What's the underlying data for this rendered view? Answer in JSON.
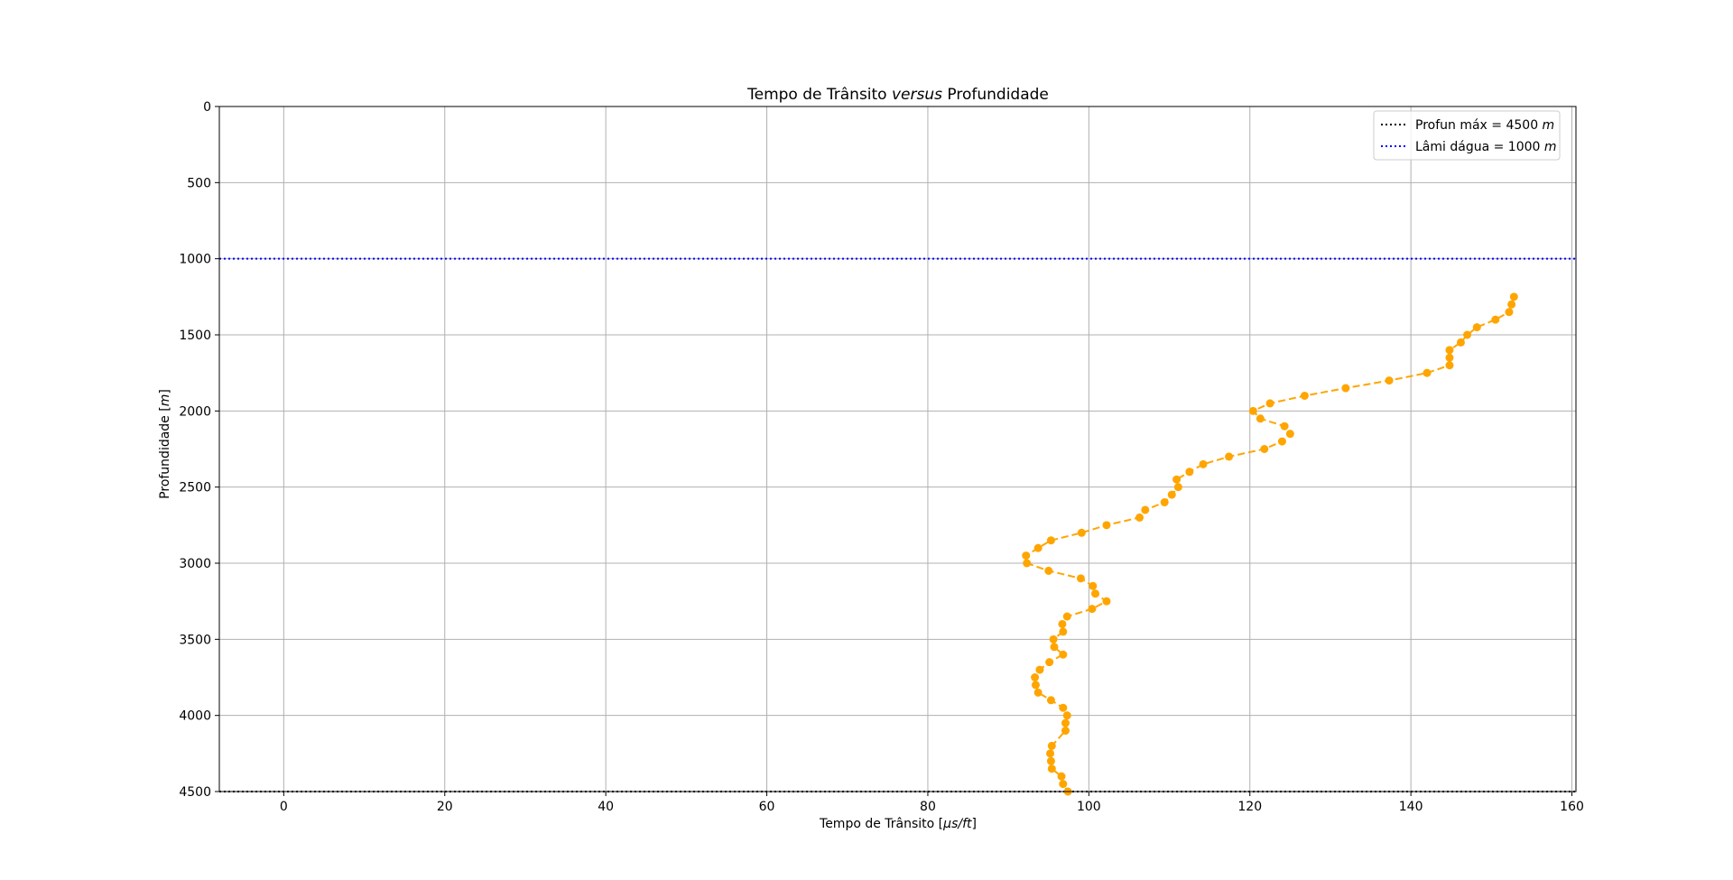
{
  "chart_data": {
    "type": "line",
    "title": {
      "prefix": "Tempo de Trânsito ",
      "italic": "versus",
      "suffix": " Profundidade"
    },
    "xlabel": {
      "prefix": "Tempo de Trânsito [",
      "italic": "μs/ft",
      "suffix": "]"
    },
    "ylabel": {
      "prefix": "Profundidade [",
      "italic": "m",
      "suffix": "]"
    },
    "xlim": [
      -8,
      160.5
    ],
    "ylim": [
      4500,
      0
    ],
    "y_inverted": true,
    "grid": true,
    "legend_position": "top-right",
    "xticks": [
      "0",
      "20",
      "40",
      "60",
      "80",
      "100",
      "120",
      "140",
      "160"
    ],
    "yticks": [
      "0",
      "500",
      "1000",
      "1500",
      "2000",
      "2500",
      "3000",
      "3500",
      "4000",
      "4500"
    ],
    "reference_lines": [
      {
        "label_prefix": "Profun máx = 4500 ",
        "label_unit": "m",
        "y": 4500,
        "color": "#000000",
        "style": "dotted"
      },
      {
        "label_prefix": "Lâmi dágua = 1000 ",
        "label_unit": "m",
        "y": 1000,
        "color": "#0000ff",
        "style": "dotted"
      }
    ],
    "series": [
      {
        "color": "#ffa500",
        "line_style": "dashed",
        "marker": "circle",
        "x": [
          152.8,
          152.5,
          152.2,
          150.5,
          148.2,
          147.0,
          146.2,
          144.8,
          144.8,
          144.8,
          142.0,
          137.3,
          131.9,
          126.8,
          122.5,
          120.4,
          121.3,
          124.3,
          125.0,
          124.0,
          121.8,
          117.4,
          114.2,
          112.5,
          110.9,
          111.1,
          110.3,
          109.4,
          107.0,
          106.3,
          102.2,
          99.1,
          95.3,
          93.7,
          92.2,
          92.3,
          95.0,
          99.0,
          100.5,
          100.8,
          102.2,
          100.4,
          97.3,
          96.7,
          96.8,
          95.6,
          95.7,
          96.8,
          95.1,
          93.9,
          93.3,
          93.4,
          93.7,
          95.3,
          96.8,
          97.3,
          97.1,
          97.1,
          95.4,
          95.2,
          95.3,
          95.4,
          96.6,
          96.8,
          97.4
        ],
        "y": [
          1250,
          1300,
          1350,
          1400,
          1450,
          1500,
          1550,
          1600,
          1650,
          1700,
          1750,
          1800,
          1850,
          1900,
          1950,
          2000,
          2050,
          2100,
          2150,
          2200,
          2250,
          2300,
          2350,
          2400,
          2450,
          2500,
          2550,
          2600,
          2650,
          2700,
          2750,
          2800,
          2850,
          2900,
          2950,
          3000,
          3050,
          3100,
          3150,
          3200,
          3250,
          3300,
          3350,
          3400,
          3450,
          3500,
          3550,
          3600,
          3650,
          3700,
          3750,
          3800,
          3850,
          3900,
          3950,
          4000,
          4050,
          4100,
          4200,
          4250,
          4300,
          4350,
          4400,
          4450,
          4500
        ]
      }
    ]
  }
}
